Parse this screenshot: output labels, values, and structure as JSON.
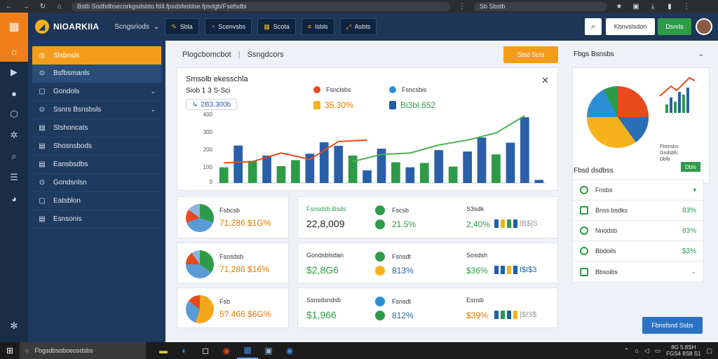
{
  "browser": {
    "url": "Bstb Sodbdbsecorkgsdsbto.fd4.fpsdsfeddse.fpsdgb/Fsefsdbi",
    "search": "Sb Sbstb"
  },
  "header": {
    "app_name": "NIOARKIIA",
    "dropdown": "Scngsriods",
    "buttons": [
      "Sbla",
      "Scenvsbs",
      "Scota",
      "Isbls",
      "Asbts"
    ],
    "notifications": "Kbnvslsdon",
    "data_btn": "Dsnds"
  },
  "sidebar": {
    "items": [
      {
        "label": "Slsbnsls",
        "icon": "◎"
      },
      {
        "label": "Bsfbsmanls",
        "icon": "⊙"
      },
      {
        "label": "Gondols",
        "icon": "▢"
      },
      {
        "label": "Ssnrs Bsnsbsls",
        "icon": "⊙"
      },
      {
        "label": "Stshoncats",
        "icon": "▤"
      },
      {
        "label": "Shosnsbods",
        "icon": "▤"
      },
      {
        "label": "Eansbsdbs",
        "icon": "▤"
      },
      {
        "label": "Gondsnlsn",
        "icon": "⊙"
      },
      {
        "label": "Eatsblon",
        "icon": "▢"
      },
      {
        "label": "Esnsonis",
        "icon": "▤"
      }
    ]
  },
  "main": {
    "breadcrumb": [
      "Plogcbomcbot",
      "Ssngdcors"
    ],
    "export_btn": "Stsd Scrs",
    "chart": {
      "title": "Smsolb ekesschla",
      "subtitle": "Siob 1 3 S-Sci",
      "pill": "2B3.300b",
      "legend": [
        {
          "name": "Fsnclsbs",
          "color": "#e8491d",
          "value": "35.30%",
          "badge": "#f5b21a"
        },
        {
          "name": "Fsncsbis",
          "color": "#2b8fd6",
          "value": "Bi3bl.652",
          "badge": "#1d5fa8"
        }
      ],
      "y_ticks": [
        "400",
        "300",
        "200",
        "100",
        "0"
      ]
    },
    "chart_data": {
      "type": "bar",
      "y_ticks": [
        "400",
        "300",
        "200",
        "100",
        "0"
      ],
      "ylim": [
        0,
        400
      ],
      "bars": [
        {
          "v": 110,
          "c": "#2e9b48"
        },
        {
          "v": 262,
          "c": "#2b5fa8"
        },
        {
          "v": 155,
          "c": "#2e9b48"
        },
        {
          "v": 192,
          "c": "#2b5fa8"
        },
        {
          "v": 118,
          "c": "#2e9b48"
        },
        {
          "v": 160,
          "c": "#2e9b48"
        },
        {
          "v": 205,
          "c": "#2b5fa8"
        },
        {
          "v": 285,
          "c": "#2b5fa8"
        },
        {
          "v": 260,
          "c": "#2b5fa8"
        },
        {
          "v": 192,
          "c": "#2e9b48"
        },
        {
          "v": 88,
          "c": "#2b5fa8"
        },
        {
          "v": 240,
          "c": "#2b5fa8"
        },
        {
          "v": 145,
          "c": "#2e9b48"
        },
        {
          "v": 110,
          "c": "#2b5fa8"
        },
        {
          "v": 140,
          "c": "#2e9b48"
        },
        {
          "v": 230,
          "c": "#2b5fa8"
        },
        {
          "v": 115,
          "c": "#2e9b48"
        },
        {
          "v": 220,
          "c": "#2b5fa8"
        },
        {
          "v": 318,
          "c": "#2b5fa8"
        },
        {
          "v": 200,
          "c": "#2e9b48"
        },
        {
          "v": 282,
          "c": "#2b5fa8"
        },
        {
          "v": 460,
          "c": "#2b5fa8"
        },
        {
          "v": 22,
          "c": "#2b5fa8"
        }
      ],
      "line_orange": [
        140,
        150,
        210,
        165,
        290,
        300
      ],
      "line_green": [
        150,
        200,
        210,
        265,
        300,
        350,
        470
      ]
    },
    "kpis": [
      {
        "label": "Fsbcsb",
        "values": "71,286 $1G%",
        "mid_label": "Fsnsdsb Bsds",
        "mid_value": "22,8,009",
        "r_label": "Fscsb",
        "r_value": "21.5%",
        "s_label": "S3sdk",
        "s_value": "2,40%",
        "s_tail": "lB$|S"
      },
      {
        "label": "Fsnsdsb",
        "values": "71,286 $16%",
        "mid_label": "Gondsblsdan",
        "mid_value": "$2,8G6",
        "r_label": "Fsnsdt",
        "r_value": "813%",
        "s_label": "Sosdsh",
        "s_value": "$36%",
        "s_tail": "I$I$3"
      },
      {
        "label": "Fsb",
        "values": "5?.466 $6G%",
        "mid_label": "Ssnsdsndsb",
        "mid_value": "$1,966",
        "r_label": "Fsnsdt",
        "r_value": "812%",
        "s_label": "Esnsb",
        "s_value": "$39%",
        "s_tail": "|$I3$"
      }
    ]
  },
  "right": {
    "title": "Fbgs Bsnsbs",
    "list_title": "Fbsd dsdbss",
    "pie_legend": [
      "Fbsnsbs",
      "Gndsbfc",
      "Dblb"
    ],
    "pie_btn": "Dbls",
    "rows": [
      {
        "label": "Fnsbs",
        "value": "",
        "chev": "▾"
      },
      {
        "label": "Bnss bsdks",
        "value": "83%",
        "chev": ""
      },
      {
        "label": "Nnodsb",
        "value": "83%",
        "chev": ""
      },
      {
        "label": "Bbdoils",
        "value": "$3%",
        "chev": ""
      },
      {
        "label": "Bbsoibs",
        "value": "",
        "chev": "⌄"
      }
    ],
    "footer_btn": "Fbnsfsnd Ssbs"
  },
  "taskbar": {
    "search": "Fbgsdbsoboeosdsbs",
    "clock_time": "8G 5.8SH",
    "clock_date": "FGS4 8S8 S1"
  },
  "colors": {
    "accent": "#f59d1b",
    "nav": "#1e3a5f",
    "green": "#2e9b48",
    "blue": "#2b5fa8"
  }
}
